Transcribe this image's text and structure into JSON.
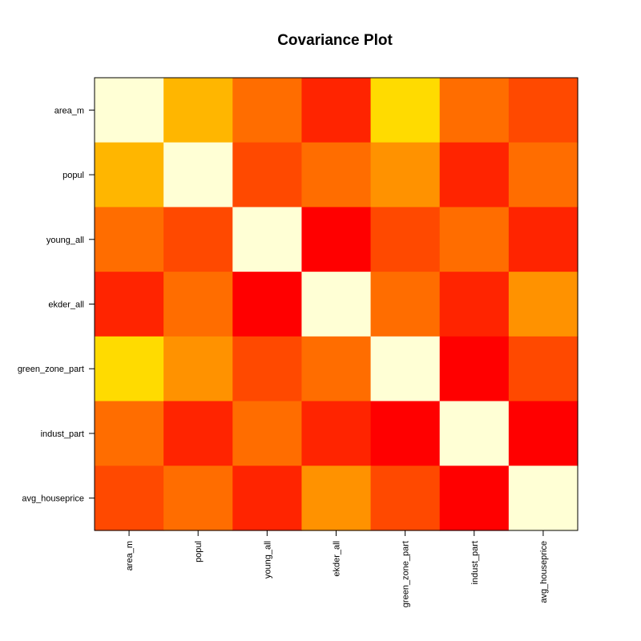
{
  "chart_data": {
    "type": "heatmap",
    "title": "Covariance Plot",
    "xlabel": "",
    "ylabel": "",
    "variables": [
      "area_m",
      "popul",
      "young_all",
      "ekder_all",
      "green_zone_part",
      "indust_part",
      "avg_houseprice"
    ],
    "palette": [
      "#FF0000",
      "#FF2400",
      "#FF4900",
      "#FF6D00",
      "#FF9200",
      "#FFB600",
      "#FFDB00",
      "#FFFFD5"
    ],
    "color_levels": [
      [
        7,
        5,
        3,
        1,
        6,
        3,
        2
      ],
      [
        5,
        7,
        2,
        3,
        4,
        1,
        3
      ],
      [
        3,
        2,
        7,
        0,
        2,
        3,
        1
      ],
      [
        1,
        3,
        0,
        7,
        3,
        1,
        4
      ],
      [
        6,
        4,
        2,
        3,
        7,
        0,
        2
      ],
      [
        3,
        1,
        3,
        1,
        0,
        7,
        0
      ],
      [
        2,
        3,
        1,
        4,
        2,
        0,
        7
      ]
    ]
  }
}
